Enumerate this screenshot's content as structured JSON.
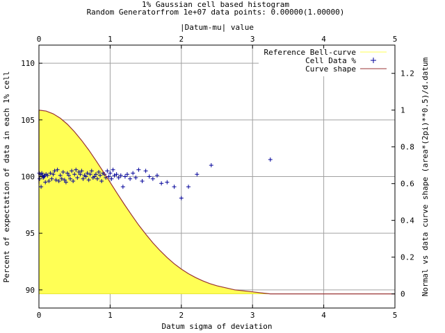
{
  "chart_data": {
    "type": "line",
    "title": "1% Gaussian cell based histogram",
    "subtitle": "Random Generatorfrom 1e+07 data points: 0.00000(1.00000)",
    "xlabel": "Datum sigma of deviation",
    "x2label": "|Datum-mu| value",
    "ylabel": "Percent of expectation of data in each 1% cell",
    "y2label": "Normal vs data curve shape (area*(2pi)**0.5)/d.datum",
    "xlim": [
      0,
      5
    ],
    "ylim": [
      88.4,
      111.6
    ],
    "y2lim": [
      -0.0769,
      1.3538
    ],
    "x_ticks": [
      "0",
      "1",
      "2",
      "3",
      "4",
      "5"
    ],
    "x2_ticks": [
      "0",
      "1",
      "2",
      "3",
      "4",
      "5"
    ],
    "y_ticks": [
      "90",
      "95",
      "100",
      "105",
      "110"
    ],
    "y2_ticks": [
      "0",
      "0.2",
      "0.4",
      "0.6",
      "0.8",
      "1",
      "1.2"
    ],
    "grid": true,
    "legend_position": "top-right",
    "colors": {
      "bell_fill": "#ffff55",
      "bell_line": "#cccc00",
      "cell_points": "#000099",
      "curve_line": "#993333",
      "grid": "#a0a0a0"
    },
    "series": [
      {
        "name": "Reference Bell-curve",
        "kind": "area",
        "axis": "y2",
        "x": [
          0,
          0.1,
          0.2,
          0.3,
          0.4,
          0.5,
          0.6,
          0.7,
          0.8,
          0.9,
          1.0,
          1.1,
          1.2,
          1.3,
          1.4,
          1.5,
          1.6,
          1.7,
          1.8,
          1.9,
          2.0,
          2.1,
          2.2,
          2.3,
          2.4,
          2.5,
          2.75,
          3.0,
          3.25,
          3.5,
          4.0,
          4.5,
          5.0
        ],
        "y": [
          1.0,
          0.995,
          0.98,
          0.956,
          0.923,
          0.882,
          0.835,
          0.783,
          0.726,
          0.667,
          0.607,
          0.546,
          0.487,
          0.43,
          0.375,
          0.325,
          0.278,
          0.236,
          0.198,
          0.164,
          0.135,
          0.11,
          0.089,
          0.071,
          0.056,
          0.044,
          0.022,
          0.011,
          0.0,
          0.0,
          0.0,
          0.0,
          0.0
        ]
      },
      {
        "name": "Cell Data %",
        "kind": "scatter",
        "axis": "y",
        "x": [
          0.005,
          0.01,
          0.02,
          0.03,
          0.04,
          0.05,
          0.06,
          0.07,
          0.08,
          0.09,
          0.1,
          0.12,
          0.14,
          0.16,
          0.18,
          0.2,
          0.22,
          0.24,
          0.26,
          0.28,
          0.3,
          0.32,
          0.34,
          0.36,
          0.38,
          0.4,
          0.42,
          0.44,
          0.46,
          0.48,
          0.5,
          0.52,
          0.54,
          0.56,
          0.58,
          0.6,
          0.62,
          0.64,
          0.66,
          0.68,
          0.7,
          0.72,
          0.74,
          0.76,
          0.78,
          0.8,
          0.82,
          0.84,
          0.86,
          0.88,
          0.9,
          0.92,
          0.94,
          0.96,
          0.98,
          1.0,
          1.02,
          1.04,
          1.06,
          1.09,
          1.12,
          1.15,
          1.18,
          1.21,
          1.24,
          1.28,
          1.32,
          1.36,
          1.4,
          1.45,
          1.5,
          1.55,
          1.6,
          1.66,
          1.72,
          1.8,
          1.9,
          2.0,
          2.1,
          2.22,
          2.42,
          3.25
        ],
        "y": [
          100.3,
          99.8,
          100.2,
          99.1,
          100.3,
          100.1,
          99.9,
          100.0,
          100.1,
          99.5,
          100.2,
          100.1,
          99.6,
          100.3,
          99.8,
          100.2,
          100.5,
          99.7,
          100.6,
          99.6,
          100.1,
          99.8,
          100.4,
          99.7,
          99.5,
          100.3,
          100.1,
          99.8,
          100.5,
          99.6,
          100.2,
          100.6,
          99.9,
          100.4,
          100.2,
          100.5,
          99.8,
          100.1,
          100.0,
          100.3,
          99.7,
          100.2,
          100.5,
          99.9,
          100.0,
          100.2,
          99.8,
          100.4,
          100.1,
          99.6,
          100.3,
          100.2,
          99.9,
          100.5,
          100.0,
          100.3,
          99.8,
          100.6,
          100.1,
          100.2,
          99.9,
          100.1,
          99.1,
          100.0,
          100.2,
          99.8,
          100.3,
          99.9,
          100.6,
          99.6,
          100.5,
          100.0,
          99.8,
          100.1,
          99.4,
          99.5,
          99.1,
          98.1,
          99.1,
          100.2,
          101.0,
          101.5
        ]
      },
      {
        "name": "Curve shape",
        "kind": "line",
        "axis": "y2",
        "x": [
          0,
          0.1,
          0.2,
          0.3,
          0.4,
          0.5,
          0.6,
          0.7,
          0.8,
          0.9,
          1.0,
          1.1,
          1.2,
          1.3,
          1.4,
          1.5,
          1.6,
          1.7,
          1.8,
          1.9,
          2.0,
          2.1,
          2.2,
          2.3,
          2.4,
          2.5,
          2.75,
          3.0,
          3.25,
          3.5,
          4.0,
          4.5,
          5.0
        ],
        "y": [
          1.0,
          0.995,
          0.98,
          0.956,
          0.923,
          0.882,
          0.835,
          0.783,
          0.726,
          0.667,
          0.607,
          0.546,
          0.487,
          0.43,
          0.375,
          0.325,
          0.278,
          0.236,
          0.198,
          0.164,
          0.135,
          0.11,
          0.089,
          0.071,
          0.056,
          0.044,
          0.022,
          0.011,
          0.0,
          0.0,
          0.0,
          0.0,
          0.0
        ]
      }
    ]
  }
}
